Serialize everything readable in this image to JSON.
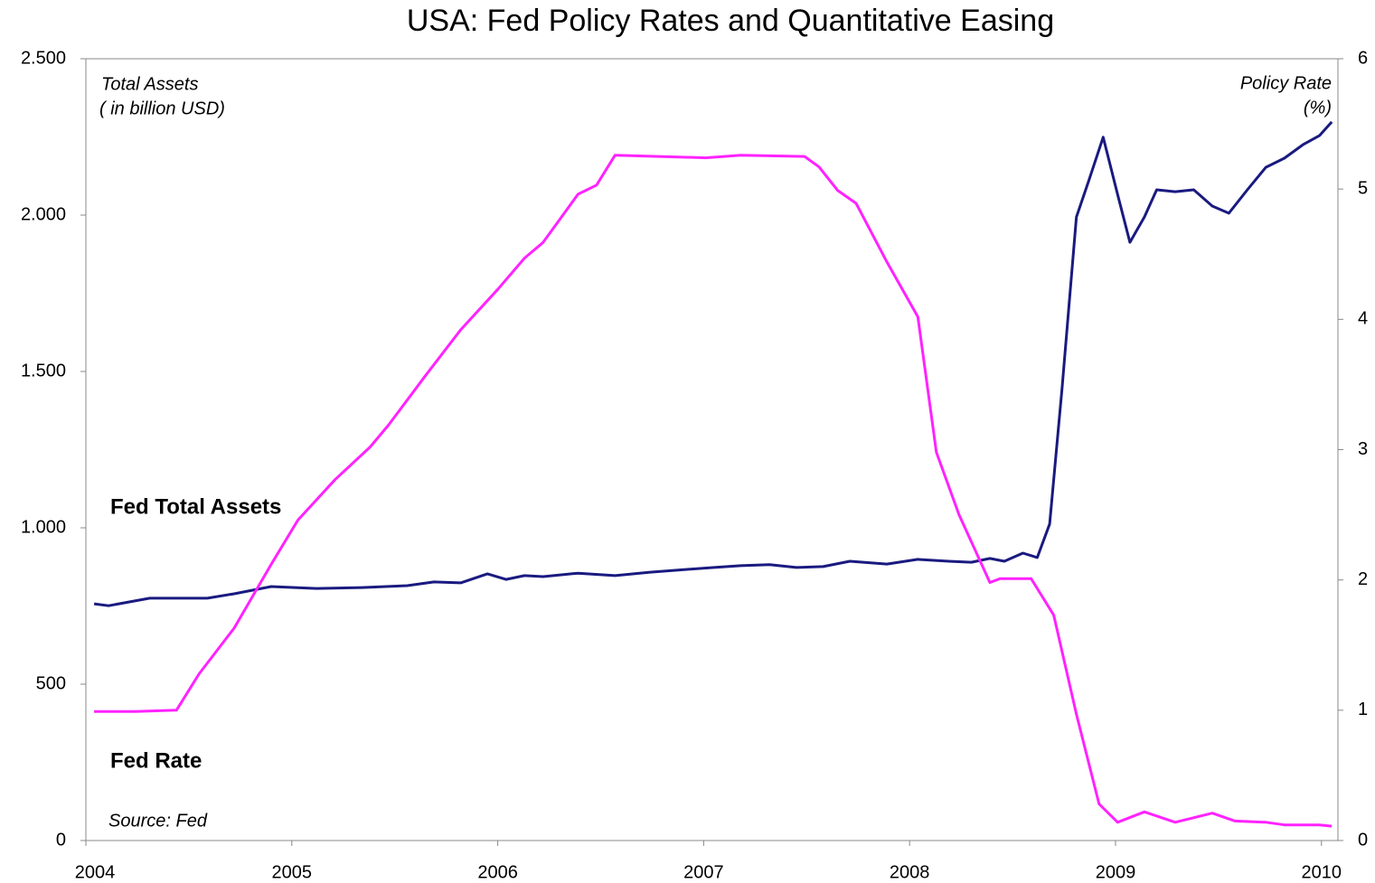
{
  "chart_data": {
    "type": "line",
    "title": "USA:  Fed Policy Rates and Quantitative Easing",
    "y_label": [
      "Total Assets",
      "( in billion USD)"
    ],
    "y2_label": [
      "Policy Rate",
      "(%)"
    ],
    "source": "Source: Fed",
    "xlim": [
      2004,
      2010.08
    ],
    "xticks": [
      2004,
      2005,
      2006,
      2007,
      2008,
      2009,
      2010
    ],
    "ylim": [
      0,
      2500
    ],
    "yticks": [
      0,
      500,
      {
        "value": 1000,
        "label": "1.000"
      },
      {
        "value": 1500,
        "label": "1.500"
      },
      {
        "value": 2000,
        "label": "2.000"
      },
      {
        "value": 2500,
        "label": "2.500"
      }
    ],
    "y2lim": [
      0,
      6
    ],
    "y2ticks": [
      0,
      1,
      2,
      3,
      4,
      5,
      6
    ],
    "series": [
      {
        "name": "Fed Total Assets",
        "color": "#1a1a80",
        "axis": "y",
        "x": [
          2004.04,
          2004.11,
          2004.31,
          2004.46,
          2004.59,
          2004.72,
          2004.9,
          2005.12,
          2005.34,
          2005.56,
          2005.69,
          2005.82,
          2005.95,
          2006.04,
          2006.13,
          2006.22,
          2006.39,
          2006.57,
          2006.74,
          2006.92,
          2007.05,
          2007.18,
          2007.32,
          2007.45,
          2007.58,
          2007.71,
          2007.89,
          2008.04,
          2008.19,
          2008.3,
          2008.39,
          2008.46,
          2008.55,
          2008.62,
          2008.68,
          2008.74,
          2008.81,
          2008.87,
          2008.94,
          2009.01,
          2009.07,
          2009.14,
          2009.2,
          2009.29,
          2009.38,
          2009.47,
          2009.55,
          2009.64,
          2009.73,
          2009.82,
          2009.91,
          2009.99,
          2010.05
        ],
        "values": [
          757,
          751,
          775,
          775,
          775,
          789,
          812,
          806,
          809,
          815,
          827,
          824,
          853,
          835,
          847,
          844,
          855,
          847,
          858,
          867,
          873,
          879,
          882,
          873,
          876,
          893,
          884,
          899,
          893,
          890,
          902,
          893,
          919,
          905,
          1012,
          1445,
          1994,
          2110,
          2249,
          2066,
          1913,
          1994,
          2081,
          2075,
          2081,
          2029,
          2006,
          2081,
          2153,
          2182,
          2225,
          2254,
          2298
        ]
      },
      {
        "name": "Fed Rate",
        "color": "#ff22ff",
        "axis": "y2",
        "x": [
          2004.04,
          2004.24,
          2004.44,
          2004.55,
          2004.72,
          2004.9,
          2005.03,
          2005.21,
          2005.38,
          2005.47,
          2005.65,
          2005.82,
          2006.0,
          2006.13,
          2006.22,
          2006.39,
          2006.48,
          2006.57,
          2007.01,
          2007.18,
          2007.49,
          2007.56,
          2007.65,
          2007.74,
          2007.89,
          2008.04,
          2008.13,
          2008.24,
          2008.39,
          2008.44,
          2008.59,
          2008.7,
          2008.81,
          2008.92,
          2009.01,
          2009.14,
          2009.29,
          2009.47,
          2009.58,
          2009.73,
          2009.82,
          2009.99,
          2010.05
        ],
        "values": [
          0.99,
          0.99,
          1.0,
          1.28,
          1.63,
          2.12,
          2.46,
          2.77,
          3.02,
          3.19,
          3.57,
          3.92,
          4.23,
          4.47,
          4.59,
          4.96,
          5.03,
          5.26,
          5.24,
          5.26,
          5.25,
          5.17,
          4.99,
          4.89,
          4.44,
          4.02,
          2.98,
          2.5,
          1.98,
          2.01,
          2.01,
          1.73,
          0.97,
          0.28,
          0.14,
          0.22,
          0.14,
          0.21,
          0.15,
          0.14,
          0.12,
          0.12,
          0.11
        ]
      }
    ]
  }
}
